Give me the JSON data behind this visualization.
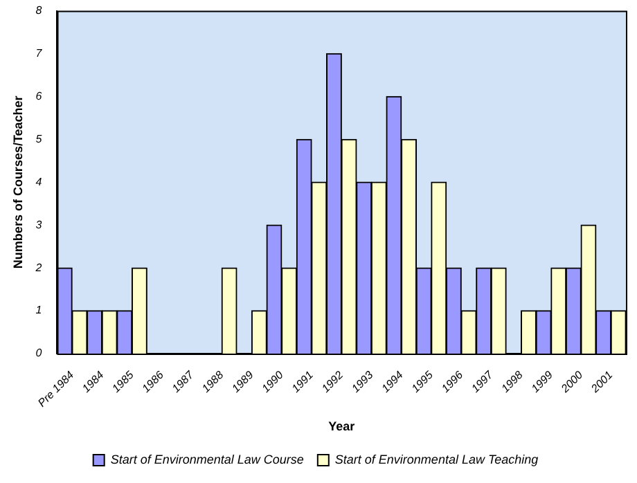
{
  "chart_data": {
    "type": "bar",
    "xlabel": "Year",
    "ylabel": "Numbers of Courses/Teacher",
    "categories": [
      "Pre 1984",
      "1984",
      "1985",
      "1986",
      "1987",
      "1988",
      "1989",
      "1990",
      "1991",
      "1992",
      "1993",
      "1994",
      "1995",
      "1996",
      "1997",
      "1998",
      "1999",
      "2000",
      "2001"
    ],
    "series": [
      {
        "name": "Start of Environmental Law Course",
        "color": "#9999ff",
        "values": [
          2,
          1,
          1,
          0,
          0,
          0,
          0,
          3,
          5,
          7,
          4,
          6,
          2,
          2,
          2,
          0,
          1,
          2,
          1
        ]
      },
      {
        "name": "Start of Environmental Law Teaching",
        "color": "#ffffcc",
        "values": [
          1,
          1,
          2,
          0,
          0,
          2,
          1,
          2,
          4,
          5,
          4,
          5,
          4,
          1,
          2,
          1,
          2,
          3,
          1
        ]
      }
    ],
    "ylim": [
      0,
      8
    ],
    "yticks": [
      0,
      1,
      2,
      3,
      4,
      5,
      6,
      7,
      8
    ],
    "grid": false,
    "legend": "bottom"
  }
}
